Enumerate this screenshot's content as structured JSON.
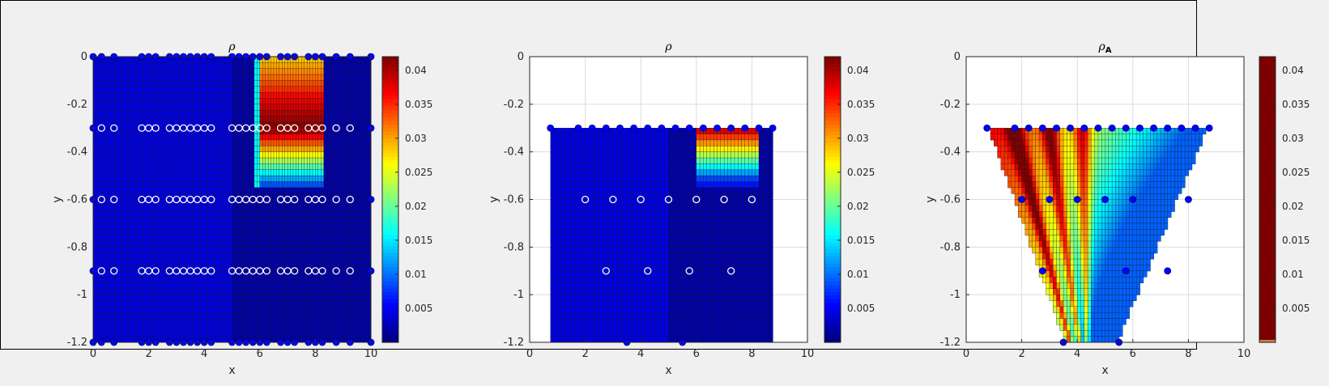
{
  "colors": {
    "background": "#f0f0f0",
    "axes_bg": "#ffffff",
    "marker_fill": "#0000ff"
  },
  "chart_data": [
    {
      "type": "heatmap",
      "title": "ρ",
      "xlabel": "x",
      "ylabel": "y",
      "xlim": [
        0,
        10
      ],
      "ylim": [
        -1.2,
        0
      ],
      "xticks": [
        "0",
        "2",
        "4",
        "6",
        "8",
        "10"
      ],
      "yticks": [
        "0",
        "-0.2",
        "-0.4",
        "-0.6",
        "-0.8",
        "-1",
        "-1.2"
      ],
      "colormap": "jet",
      "clim": [
        0,
        0.042
      ],
      "colorbar_ticks": [
        "0.04",
        "0.035",
        "0.03",
        "0.025",
        "0.02",
        "0.015",
        "0.01",
        "0.005"
      ],
      "grid": "off",
      "regions": [
        {
          "x": [
            0,
            5
          ],
          "y": [
            -1.2,
            0
          ],
          "value": 0.004
        },
        {
          "x": [
            5,
            10
          ],
          "y": [
            -1.2,
            -0.57
          ],
          "value": 0.002
        },
        {
          "x": [
            5,
            10
          ],
          "y": [
            -0.57,
            0
          ],
          "value": 0.002
        },
        {
          "x": [
            6,
            8.3
          ],
          "y": [
            -0.55,
            0
          ],
          "value_profile": "inclusion",
          "peak": 0.042
        },
        {
          "x": [
            5.9,
            6.2
          ],
          "y": [
            -0.55,
            0
          ],
          "value": 0.016
        }
      ],
      "marker_rows": [
        0,
        -0.3,
        -0.6,
        -0.9,
        -1.2
      ],
      "marker_x": [
        0,
        0.3,
        0.75,
        1.75,
        2.0,
        2.25,
        2.75,
        3.0,
        3.25,
        3.5,
        3.75,
        4.0,
        4.25,
        5.0,
        5.25,
        5.5,
        5.75,
        6.0,
        6.25,
        6.75,
        7.0,
        7.25,
        7.75,
        8.0,
        8.25,
        8.75,
        9.25,
        10
      ]
    },
    {
      "type": "heatmap",
      "title": "ρ",
      "xlabel": "x",
      "ylabel": "y",
      "xlim": [
        0,
        10
      ],
      "ylim": [
        -1.2,
        0
      ],
      "xticks": [
        "0",
        "2",
        "4",
        "6",
        "8",
        "10"
      ],
      "yticks": [
        "0",
        "-0.2",
        "-0.4",
        "-0.6",
        "-0.8",
        "-1",
        "-1.2"
      ],
      "colormap": "jet",
      "clim": [
        0,
        0.042
      ],
      "colorbar_ticks": [
        "0.04",
        "0.035",
        "0.03",
        "0.025",
        "0.02",
        "0.015",
        "0.01",
        "0.005"
      ],
      "grid": "on",
      "domain": {
        "x": [
          0.75,
          8.75
        ],
        "y": [
          -1.2,
          -0.3
        ]
      },
      "top_markers_x": [
        0.75,
        1.75,
        2.25,
        2.75,
        3.25,
        3.75,
        4.25,
        4.75,
        5.25,
        5.75,
        6.25,
        6.75,
        7.25,
        7.75,
        8.25,
        8.75
      ],
      "interior_markers": [
        [
          2.0,
          -0.6
        ],
        [
          3.0,
          -0.6
        ],
        [
          4.0,
          -0.6
        ],
        [
          5.0,
          -0.6
        ],
        [
          6.0,
          -0.6
        ],
        [
          7.0,
          -0.6
        ],
        [
          8.0,
          -0.6
        ],
        [
          2.75,
          -0.9
        ],
        [
          4.25,
          -0.9
        ],
        [
          5.75,
          -0.9
        ],
        [
          7.25,
          -0.9
        ]
      ],
      "bottom_markers_x": [
        3.5,
        5.5
      ]
    },
    {
      "type": "heatmap",
      "title": "ρ",
      "title_subscript": "A",
      "xlabel": "x",
      "ylabel": "y",
      "xlim": [
        0,
        10
      ],
      "ylim": [
        -1.2,
        0
      ],
      "xticks": [
        "0",
        "2",
        "4",
        "6",
        "8",
        "10"
      ],
      "yticks": [
        "0",
        "-0.2",
        "-0.4",
        "-0.6",
        "-0.8",
        "-1",
        "-1.2"
      ],
      "colormap": "jet",
      "colorbar_colormap": "dark-red",
      "colorbar_ticks": [
        "0.04",
        "0.035",
        "0.03",
        "0.025",
        "0.02",
        "0.015",
        "0.01",
        "0.005"
      ],
      "grid": "on",
      "domain": {
        "top_y": -0.3,
        "bottom_y": -1.2,
        "top_x": [
          0.75,
          8.75
        ],
        "bottom_x": [
          3.5,
          5.5
        ]
      },
      "top_markers_x": [
        0.75,
        1.75,
        2.25,
        2.75,
        3.25,
        3.75,
        4.25,
        4.75,
        5.25,
        5.75,
        6.25,
        6.75,
        7.25,
        7.75,
        8.25,
        8.75
      ],
      "interior_markers": [
        [
          2.0,
          -0.6
        ],
        [
          3.0,
          -0.6
        ],
        [
          4.0,
          -0.6
        ],
        [
          5.0,
          -0.6
        ],
        [
          6.0,
          -0.6
        ],
        [
          8.0,
          -0.6
        ],
        [
          2.75,
          -0.9
        ],
        [
          5.75,
          -0.9
        ],
        [
          7.25,
          -0.9
        ]
      ],
      "bottom_markers_x": [
        3.5,
        5.5
      ]
    }
  ]
}
